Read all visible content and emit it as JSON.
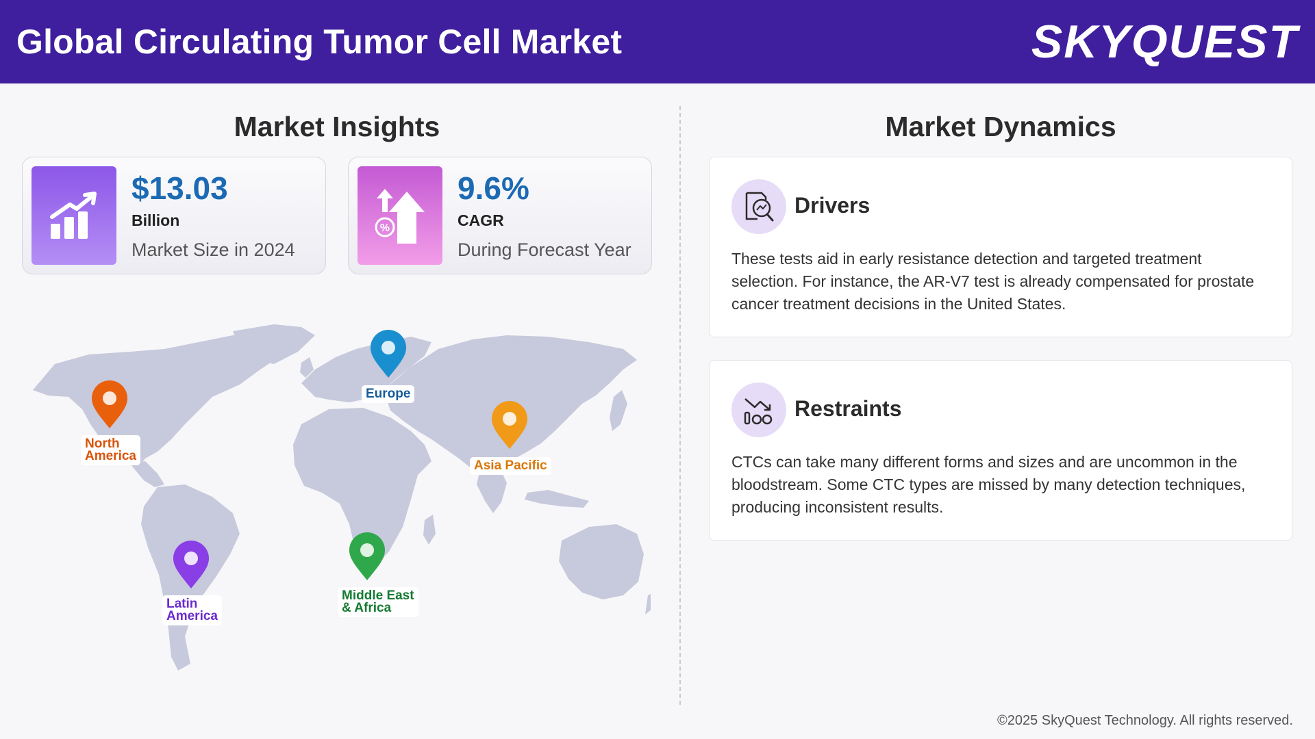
{
  "header": {
    "title": "Global Circulating Tumor Cell Market",
    "logo": "SKYQUEST"
  },
  "insights": {
    "title": "Market Insights",
    "cards": [
      {
        "value": "$13.03",
        "unit": "Billion",
        "desc": "Market Size in 2024",
        "icon": "bar-chart-growth-icon",
        "color": "#8c57e8"
      },
      {
        "value": "9.6%",
        "unit": "CAGR",
        "desc": "During Forecast Year",
        "icon": "percent-arrow-up-icon",
        "color": "#c45ad4"
      }
    ]
  },
  "map": {
    "regions": [
      {
        "label_line1": "North",
        "label_line2": "America",
        "color": "#e8600c"
      },
      {
        "label_line1": "Europe",
        "label_line2": "",
        "color": "#1a7fc2"
      },
      {
        "label_line1": "Asia Pacific",
        "label_line2": "",
        "color": "#e08a10"
      },
      {
        "label_line1": "Latin",
        "label_line2": "America",
        "color": "#7b35d8"
      },
      {
        "label_line1": "Middle East",
        "label_line2": "& Africa",
        "color": "#1c8a3c"
      }
    ]
  },
  "dynamics": {
    "title": "Market Dynamics",
    "drivers": {
      "title": "Drivers",
      "icon": "magnifier-chart-icon",
      "body": "These tests aid in early resistance detection and targeted treatment selection. For instance, the AR-V7 test is already compensated for prostate cancer treatment decisions in the United States."
    },
    "restraints": {
      "title": "Restraints",
      "icon": "declining-chart-icon",
      "body": "CTCs can take many different forms and sizes and are uncommon in the bloodstream. Some CTC types are missed by many detection techniques, producing inconsistent results."
    }
  },
  "footer": {
    "copyright": "©2025 SkyQuest Technology. All rights reserved."
  }
}
